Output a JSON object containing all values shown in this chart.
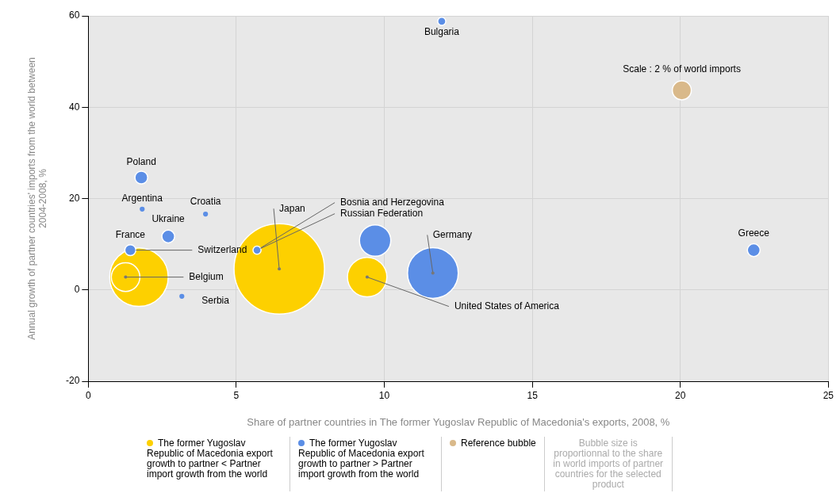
{
  "chart_data": {
    "type": "bubble",
    "xlabel": "Share of partner countries in The former Yugoslav Republic of Macedonia's exports, 2008, %",
    "ylabel": "Annual growth of partner countries' imports from the world between 2004-2008, %",
    "xlim": [
      0,
      25
    ],
    "xticks": [
      0,
      5,
      10,
      15,
      20,
      25
    ],
    "ylim": [
      -20,
      60
    ],
    "yticks": [
      -20,
      0,
      20,
      40,
      60
    ],
    "grid": true,
    "legend": "bottom",
    "series": [
      {
        "name": "The former Yugoslav Republic of Macedonia export growth to partner < Partner import growth from the world",
        "color": "#fdd000",
        "x": [
          1.71,
          1.26,
          6.45,
          9.42
        ],
        "values": [
          2.8,
          2.8,
          4.6,
          2.8
        ],
        "sizes": [
          0.42,
          0.1,
          1,
          0.19
        ]
      },
      {
        "name": "The former Yugoslav Republic of Macedonia export growth to partner > Partner import growth from the world",
        "color": "#5b8ee6",
        "x": [
          11.94,
          1.79,
          1.82,
          3.96,
          2.7,
          1.42,
          3.16,
          5.7,
          9.69,
          11.64,
          22.48
        ],
        "values": [
          58.8,
          24.6,
          17.7,
          16.6,
          11.7,
          8.7,
          -1.4,
          8.7,
          10.8,
          3.7,
          8.7
        ],
        "sizes": [
          0.008,
          0.02,
          0.003,
          0.003,
          0.02,
          0.015,
          0.003,
          0.008,
          0.12,
          0.315,
          0.02
        ]
      },
      {
        "name": "Reference bubble",
        "color": "#d9b98a",
        "x": [
          20.05
        ],
        "values": [
          43.7
        ],
        "sizes": [
          0.044
        ]
      }
    ],
    "annotations": [
      {
        "text": "Bulgaria",
        "x": 11.94,
        "y": 58.8
      },
      {
        "text": "Scale : 2 % of world imports",
        "x": 20.05,
        "y": 43.7
      },
      {
        "text": "Poland",
        "x": 1.79,
        "y": 24.6
      },
      {
        "text": "Argentina",
        "x": 1.82,
        "y": 17.7
      },
      {
        "text": "Croatia",
        "x": 3.96,
        "y": 16.6
      },
      {
        "text": "Ukraine",
        "x": 2.7,
        "y": 11.7
      },
      {
        "text": "France",
        "x": 1.42,
        "y": 8.7
      },
      {
        "text": "Switzerland",
        "x": 1.42,
        "y": 8.7
      },
      {
        "text": "Belgium",
        "x": 1.26,
        "y": 2.8
      },
      {
        "text": "Serbia",
        "x": 3.16,
        "y": -1.4
      },
      {
        "text": "Japan",
        "x": 6.45,
        "y": 4.6
      },
      {
        "text": "Bosnia and Herzegovina",
        "x": 5.7,
        "y": 8.7
      },
      {
        "text": "Russian Federation",
        "x": 5.7,
        "y": 8.7
      },
      {
        "text": "Germany",
        "x": 11.64,
        "y": 3.7
      },
      {
        "text": "United States of America",
        "x": 9.42,
        "y": 2.8
      },
      {
        "text": "Greece",
        "x": 22.48,
        "y": 8.7
      },
      "Bubble size is proportionnal to the share in world imports of partner countries for the selected product"
    ]
  }
}
